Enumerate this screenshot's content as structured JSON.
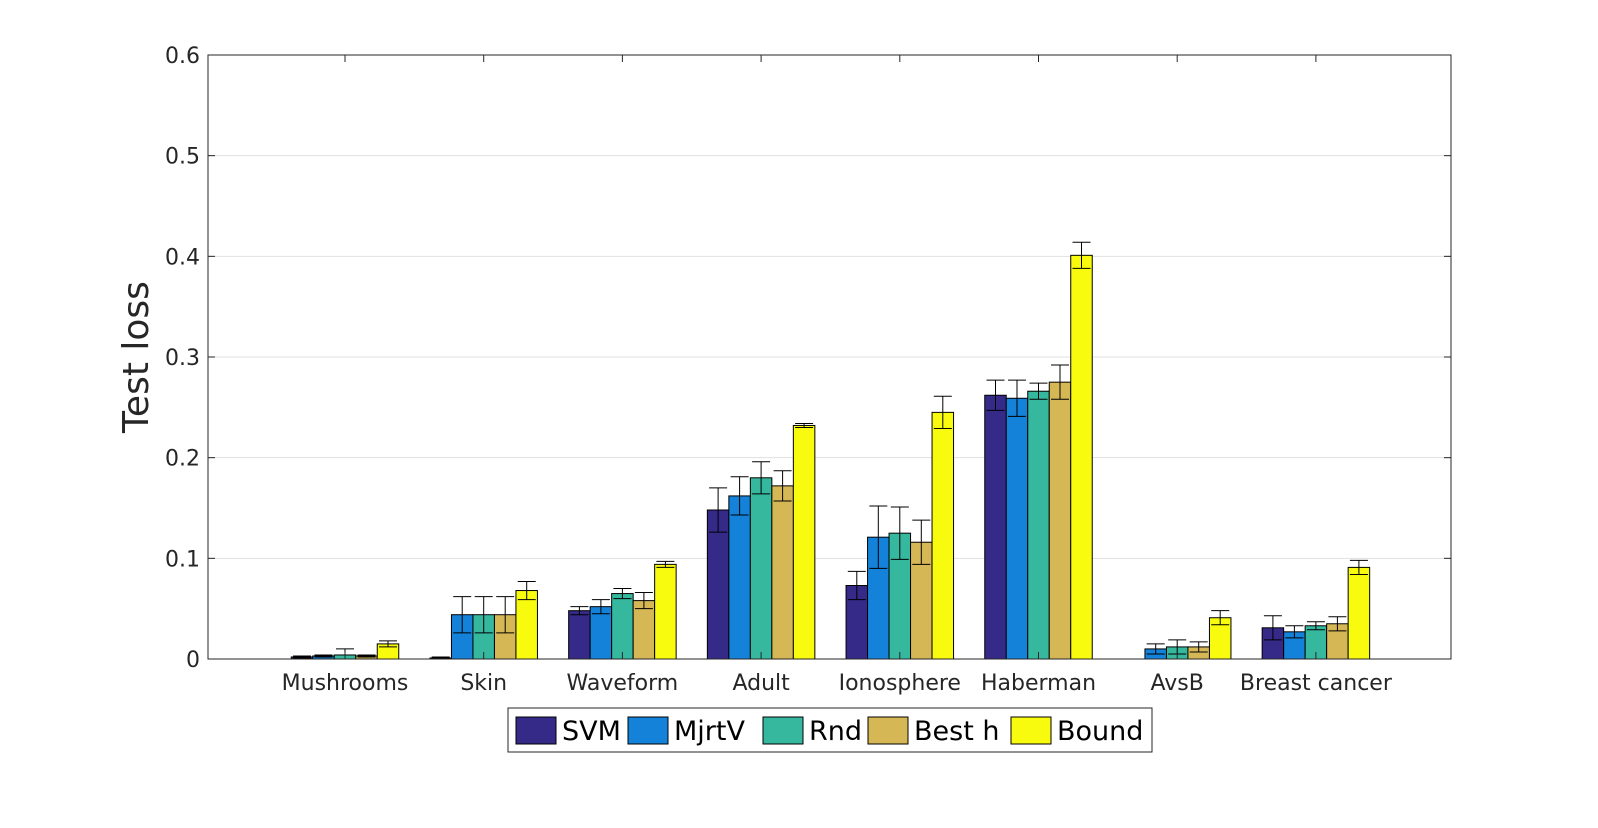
{
  "chart_data": {
    "type": "bar",
    "title": "",
    "xlabel": "",
    "ylabel": "Test loss",
    "ylim": [
      0,
      0.6
    ],
    "yticks": [
      0,
      0.1,
      0.2,
      0.3,
      0.4,
      0.5,
      0.6
    ],
    "ytick_labels": [
      "0",
      "0.1",
      "0.2",
      "0.3",
      "0.4",
      "0.5",
      "0.6"
    ],
    "grid": true,
    "legend_position": "bottom-center",
    "categories": [
      "Mushrooms",
      "Skin",
      "Waveform",
      "Adult",
      "Ionosphere",
      "Haberman",
      "AvsB",
      "Breast cancer"
    ],
    "series": [
      {
        "name": "SVM",
        "color": "#352a87",
        "values": [
          0.002,
          0.001,
          0.048,
          0.148,
          0.073,
          0.262,
          0.0,
          0.031
        ],
        "errors": [
          0.001,
          0.001,
          0.004,
          0.022,
          0.014,
          0.015,
          0.0,
          0.012
        ]
      },
      {
        "name": "MjrtV",
        "color": "#1582d9",
        "values": [
          0.003,
          0.044,
          0.052,
          0.162,
          0.121,
          0.259,
          0.01,
          0.027
        ],
        "errors": [
          0.001,
          0.018,
          0.007,
          0.019,
          0.031,
          0.018,
          0.005,
          0.006
        ]
      },
      {
        "name": "Rnd",
        "color": "#36b89f",
        "values": [
          0.004,
          0.044,
          0.065,
          0.18,
          0.125,
          0.266,
          0.012,
          0.033
        ],
        "errors": [
          0.006,
          0.018,
          0.005,
          0.016,
          0.026,
          0.008,
          0.007,
          0.004
        ]
      },
      {
        "name": "Best h",
        "color": "#d6b756",
        "values": [
          0.003,
          0.044,
          0.058,
          0.172,
          0.116,
          0.275,
          0.012,
          0.035
        ],
        "errors": [
          0.001,
          0.018,
          0.008,
          0.015,
          0.022,
          0.017,
          0.005,
          0.007
        ]
      },
      {
        "name": "Bound",
        "color": "#f9fb0e",
        "values": [
          0.015,
          0.068,
          0.094,
          0.232,
          0.245,
          0.401,
          0.041,
          0.091
        ],
        "errors": [
          0.003,
          0.009,
          0.003,
          0.002,
          0.016,
          0.013,
          0.007,
          0.007
        ]
      }
    ]
  }
}
